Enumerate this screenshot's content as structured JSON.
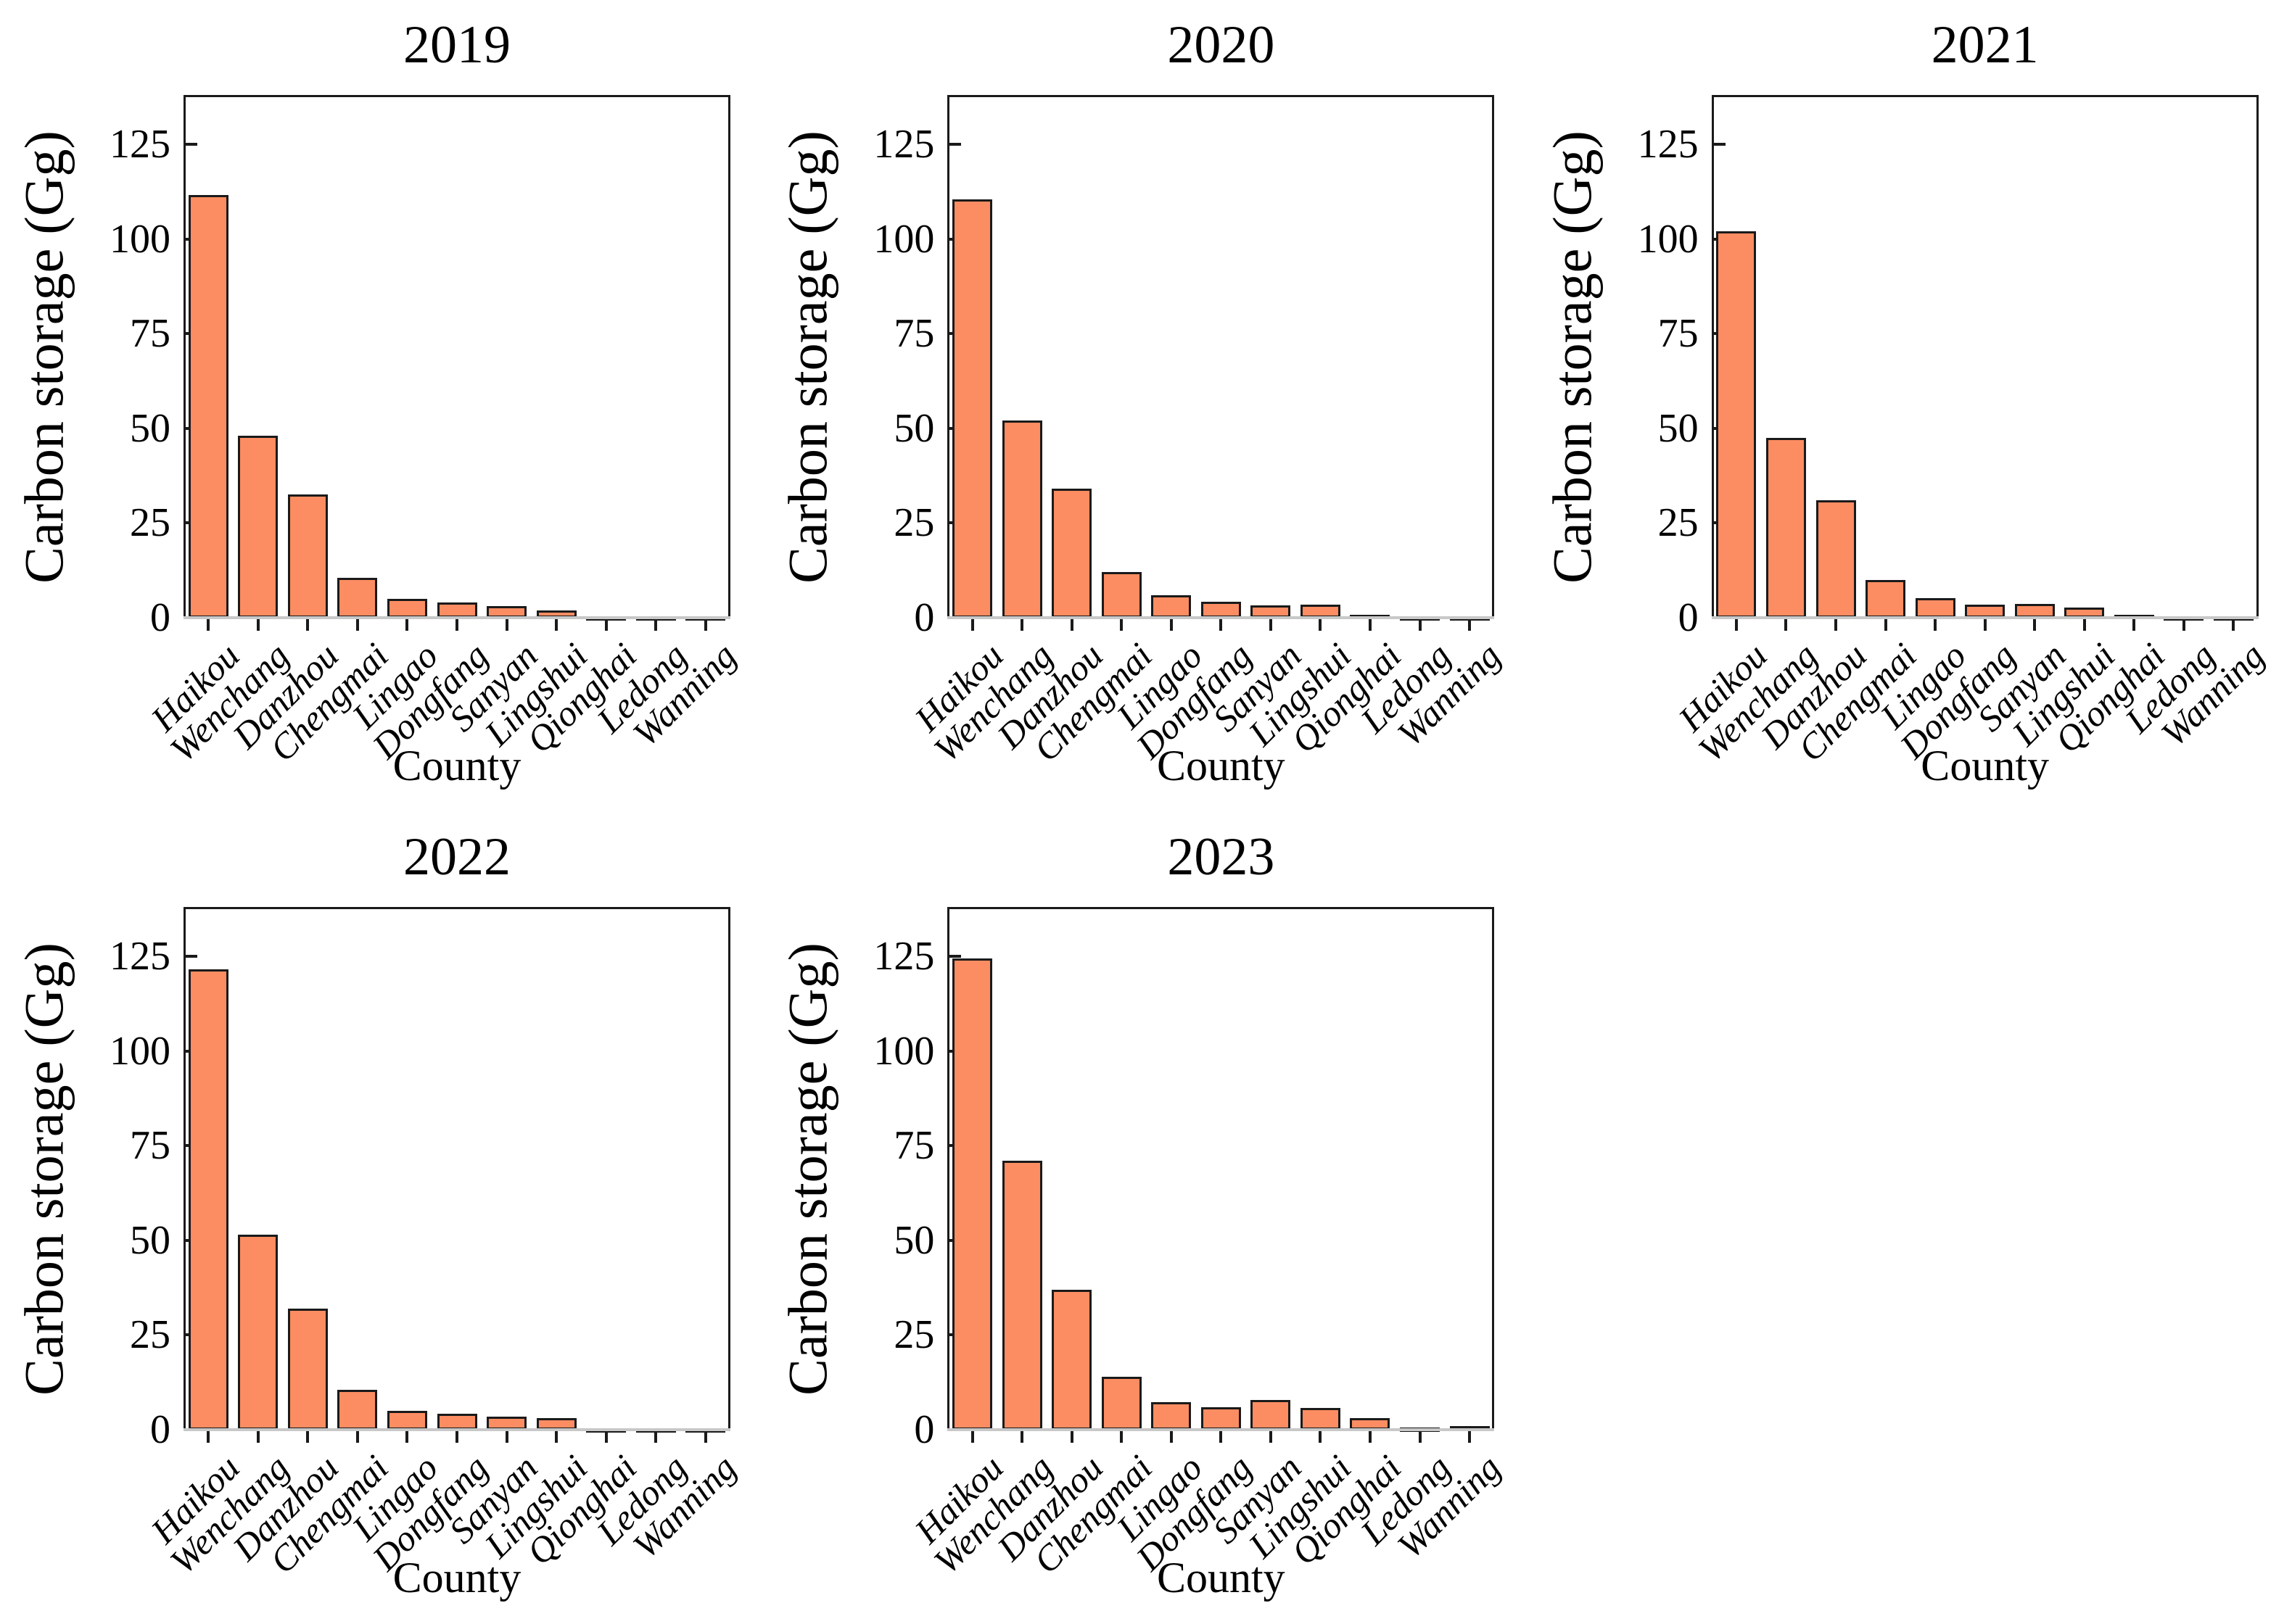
{
  "figure": {
    "bar_fill": "#FC8D62",
    "bar_edge": "#1a1a1a",
    "baseline_color": "#c8c8c8",
    "text_color": "#000000",
    "background": "#ffffff",
    "layout": "2 rows x 3 columns, last cell empty"
  },
  "chart_data": [
    {
      "type": "bar",
      "title": "2019",
      "xlabel": "County",
      "ylabel": "Carbon storage (Gg)",
      "ylim": [
        0,
        138
      ],
      "yticks": [
        0,
        25,
        50,
        75,
        100,
        125
      ],
      "grid": false,
      "categories": [
        "Haikou",
        "Wenchang",
        "Danzhou",
        "Chengmai",
        "Lingao",
        "Dongfang",
        "Sanyan",
        "Lingshui",
        "Qionghai",
        "Ledong",
        "Wanning"
      ],
      "values": [
        111.5,
        48,
        32.5,
        10.5,
        5,
        4,
        3,
        2,
        0.2,
        0.2,
        0.2
      ]
    },
    {
      "type": "bar",
      "title": "2020",
      "xlabel": "County",
      "ylabel": "Carbon storage (Gg)",
      "ylim": [
        0,
        138
      ],
      "yticks": [
        0,
        25,
        50,
        75,
        100,
        125
      ],
      "grid": false,
      "categories": [
        "Haikou",
        "Wenchang",
        "Danzhou",
        "Chengmai",
        "Lingao",
        "Dongfang",
        "Sanyan",
        "Lingshui",
        "Qionghai",
        "Ledong",
        "Wanning"
      ],
      "values": [
        110.5,
        52,
        34,
        12,
        6,
        4.2,
        3.2,
        3.4,
        0.7,
        0.2,
        0.2
      ]
    },
    {
      "type": "bar",
      "title": "2021",
      "xlabel": "County",
      "ylabel": "Carbon storage (Gg)",
      "ylim": [
        0,
        138
      ],
      "yticks": [
        0,
        25,
        50,
        75,
        100,
        125
      ],
      "grid": false,
      "categories": [
        "Haikou",
        "Wenchang",
        "Danzhou",
        "Chengmai",
        "Lingao",
        "Dongfang",
        "Sanyan",
        "Lingshui",
        "Qionghai",
        "Ledong",
        "Wanning"
      ],
      "values": [
        102,
        47.5,
        31,
        10,
        5.2,
        3.5,
        3.6,
        2.6,
        0.8,
        0.2,
        0.2
      ]
    },
    {
      "type": "bar",
      "title": "2022",
      "xlabel": "County",
      "ylabel": "Carbon storage (Gg)",
      "ylim": [
        0,
        138
      ],
      "yticks": [
        0,
        25,
        50,
        75,
        100,
        125
      ],
      "grid": false,
      "categories": [
        "Haikou",
        "Wenchang",
        "Danzhou",
        "Chengmai",
        "Lingao",
        "Dongfang",
        "Sanyan",
        "Lingshui",
        "Qionghai",
        "Ledong",
        "Wanning"
      ],
      "values": [
        121.5,
        51.5,
        32,
        10.5,
        5,
        4.2,
        3.4,
        3,
        0.3,
        0.3,
        0.2
      ]
    },
    {
      "type": "bar",
      "title": "2023",
      "xlabel": "County",
      "ylabel": "Carbon storage (Gg)",
      "ylim": [
        0,
        138
      ],
      "yticks": [
        0,
        25,
        50,
        75,
        100,
        125
      ],
      "grid": false,
      "categories": [
        "Haikou",
        "Wenchang",
        "Danzhou",
        "Chengmai",
        "Lingao",
        "Dongfang",
        "Sanyan",
        "Lingshui",
        "Qionghai",
        "Ledong",
        "Wanning"
      ],
      "values": [
        124.5,
        71,
        37,
        14,
        7.2,
        6,
        7.8,
        5.7,
        3.1,
        0.6,
        0.9
      ]
    }
  ]
}
